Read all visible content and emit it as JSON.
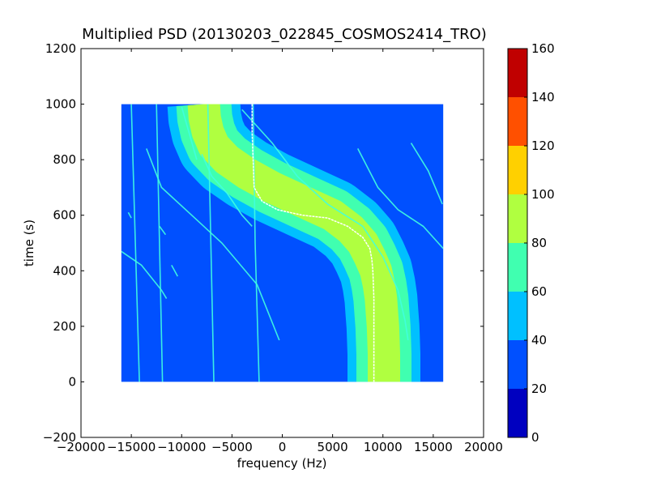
{
  "chart_data": {
    "type": "heatmap",
    "title": "Multiplied PSD (20130203_022845_COSMOS2414_TRO)",
    "xlabel": "frequency (Hz)",
    "ylabel": "time (s)",
    "xlim": [
      -20000,
      20000
    ],
    "ylim": [
      -200,
      1200
    ],
    "xticks": [
      -20000,
      -15000,
      -10000,
      -5000,
      0,
      5000,
      10000,
      15000,
      20000
    ],
    "yticks": [
      -200,
      0,
      200,
      400,
      600,
      800,
      1000,
      1200
    ],
    "data_extent": {
      "x": [
        -16000,
        16000
      ],
      "y": [
        0,
        1000
      ]
    },
    "background_level_range": [
      20,
      40
    ],
    "colorbar": {
      "ticks": [
        0,
        20,
        40,
        60,
        80,
        100,
        120,
        140,
        160
      ],
      "levels": [
        {
          "range": [
            0,
            20
          ],
          "color": "#0000c0"
        },
        {
          "range": [
            20,
            40
          ],
          "color": "#0050ff"
        },
        {
          "range": [
            40,
            60
          ],
          "color": "#00c0ff"
        },
        {
          "range": [
            60,
            80
          ],
          "color": "#40ffb0"
        },
        {
          "range": [
            80,
            100
          ],
          "color": "#b0ff40"
        },
        {
          "range": [
            100,
            120
          ],
          "color": "#ffd000"
        },
        {
          "range": [
            120,
            140
          ],
          "color": "#ff5000"
        },
        {
          "range": [
            140,
            160
          ],
          "color": "#c00000"
        }
      ]
    },
    "band": {
      "description": "S-shaped Doppler band",
      "level_range": [
        40,
        100
      ],
      "points": [
        [
          -7800,
          1000
        ],
        [
          -7700,
          950
        ],
        [
          -7400,
          900
        ],
        [
          -6800,
          850
        ],
        [
          -5500,
          800
        ],
        [
          -3500,
          750
        ],
        [
          -1000,
          700
        ],
        [
          2000,
          650
        ],
        [
          5000,
          600
        ],
        [
          6800,
          550
        ],
        [
          8000,
          500
        ],
        [
          8700,
          450
        ],
        [
          9300,
          400
        ],
        [
          9600,
          350
        ],
        [
          9800,
          300
        ],
        [
          9900,
          250
        ],
        [
          10000,
          200
        ],
        [
          10050,
          150
        ],
        [
          10100,
          100
        ],
        [
          10100,
          50
        ],
        [
          10100,
          0
        ]
      ]
    },
    "peak_track": {
      "description": "white peak frequency track",
      "color": "#ffffff",
      "points": [
        [
          -3000,
          1000
        ],
        [
          -3000,
          900
        ],
        [
          -2900,
          800
        ],
        [
          -2800,
          700
        ],
        [
          -2000,
          650
        ],
        [
          -500,
          620
        ],
        [
          2000,
          600
        ],
        [
          4500,
          590
        ],
        [
          6500,
          560
        ],
        [
          8000,
          520
        ],
        [
          8700,
          480
        ],
        [
          8900,
          440
        ],
        [
          9000,
          400
        ],
        [
          9100,
          300
        ],
        [
          9100,
          200
        ],
        [
          9100,
          100
        ],
        [
          9100,
          0
        ]
      ]
    },
    "lines": [
      {
        "color": "#40ffe0",
        "points": [
          [
            -14200,
            0
          ],
          [
            -14600,
            500
          ],
          [
            -15000,
            1000
          ]
        ]
      },
      {
        "color": "#40ffe0",
        "points": [
          [
            -11900,
            0
          ],
          [
            -12200,
            500
          ],
          [
            -12500,
            1000
          ]
        ]
      },
      {
        "color": "#40ffe0",
        "points": [
          [
            -6800,
            0
          ],
          [
            -7100,
            500
          ],
          [
            -7400,
            1000
          ]
        ]
      },
      {
        "color": "#40ffe0",
        "points": [
          [
            -2300,
            0
          ],
          [
            -2700,
            500
          ],
          [
            -2900,
            1000
          ]
        ]
      },
      {
        "color": "#40ffe0",
        "points": [
          [
            -13500,
            840
          ],
          [
            -12000,
            700
          ],
          [
            -9000,
            600
          ],
          [
            -6000,
            500
          ],
          [
            -2500,
            350
          ],
          [
            -300,
            150
          ]
        ]
      },
      {
        "color": "#40ffe0",
        "points": [
          [
            -16000,
            470
          ],
          [
            -14000,
            420
          ],
          [
            -12000,
            330
          ],
          [
            -11500,
            300
          ]
        ]
      },
      {
        "color": "#40ffe0",
        "points": [
          [
            -8000,
            820
          ],
          [
            -7000,
            740
          ],
          [
            -5500,
            680
          ],
          [
            -4000,
            600
          ],
          [
            -3000,
            560
          ]
        ]
      },
      {
        "color": "#40ffe0",
        "points": [
          [
            -4000,
            980
          ],
          [
            -1000,
            860
          ],
          [
            1500,
            740
          ],
          [
            4500,
            640
          ],
          [
            8000,
            560
          ],
          [
            10000,
            450
          ],
          [
            11500,
            330
          ],
          [
            12200,
            220
          ],
          [
            12500,
            150
          ]
        ]
      },
      {
        "color": "#40ffe0",
        "points": [
          [
            7500,
            840
          ],
          [
            9500,
            700
          ],
          [
            11500,
            620
          ],
          [
            14000,
            560
          ],
          [
            16000,
            480
          ]
        ]
      },
      {
        "color": "#40ffe0",
        "points": [
          [
            12800,
            860
          ],
          [
            14500,
            760
          ],
          [
            15900,
            640
          ]
        ]
      },
      {
        "color": "#40ffe0",
        "points": [
          [
            -10000,
            990
          ],
          [
            -8500,
            800
          ]
        ]
      },
      {
        "color": "#40ffe0",
        "points": [
          [
            -15300,
            610
          ],
          [
            -15000,
            590
          ]
        ]
      },
      {
        "color": "#40ffe0",
        "points": [
          [
            -10400,
            380
          ],
          [
            -11000,
            420
          ]
        ]
      },
      {
        "color": "#40ffe0",
        "points": [
          [
            -11600,
            530
          ],
          [
            -12200,
            560
          ]
        ]
      }
    ]
  }
}
